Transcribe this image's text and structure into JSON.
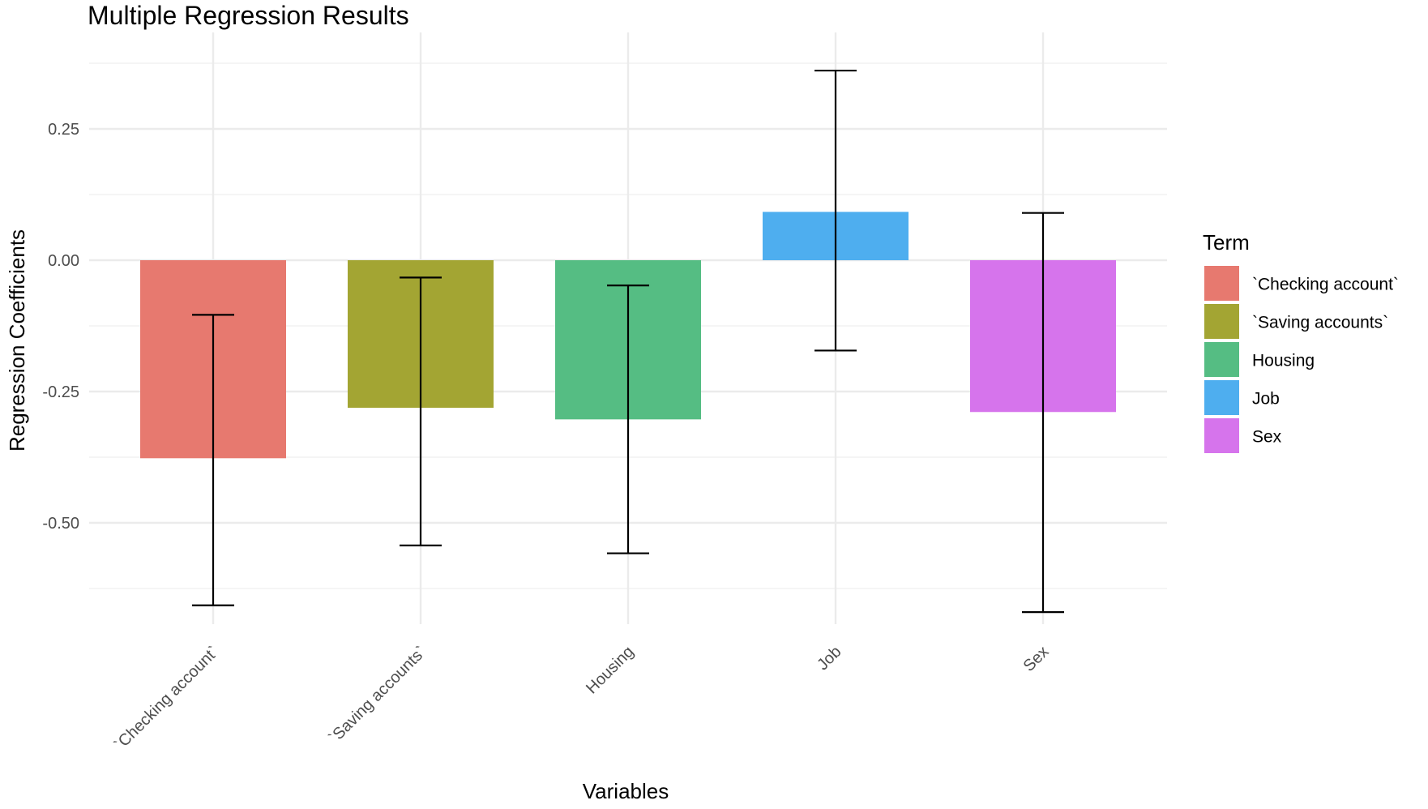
{
  "chart_data": {
    "type": "bar",
    "title": "Multiple Regression Results",
    "xlabel": "Variables",
    "ylabel": "Regression Coefficients",
    "categories": [
      "`Checking account`",
      "`Saving accounts`",
      "Housing",
      "Job",
      "Sex"
    ],
    "values": [
      -0.377,
      -0.281,
      -0.303,
      0.092,
      -0.289
    ],
    "error_low": [
      -0.657,
      -0.543,
      -0.558,
      -0.172,
      -0.67
    ],
    "error_high": [
      -0.104,
      -0.033,
      -0.048,
      0.361,
      0.09
    ],
    "colors": [
      "#E7796F",
      "#A3A533",
      "#55BD83",
      "#4EAEEF",
      "#D674EC"
    ],
    "ylim": [
      -0.72,
      0.38
    ],
    "yticks": [
      0.25,
      0.0,
      -0.25,
      -0.5
    ],
    "ytick_labels": [
      "0.25",
      "0.00",
      "-0.25",
      "-0.50"
    ],
    "grid": true,
    "legend": {
      "title": "Term",
      "position": "right",
      "entries": [
        "`Checking account`",
        "`Saving accounts`",
        "Housing",
        "Job",
        "Sex"
      ]
    }
  }
}
